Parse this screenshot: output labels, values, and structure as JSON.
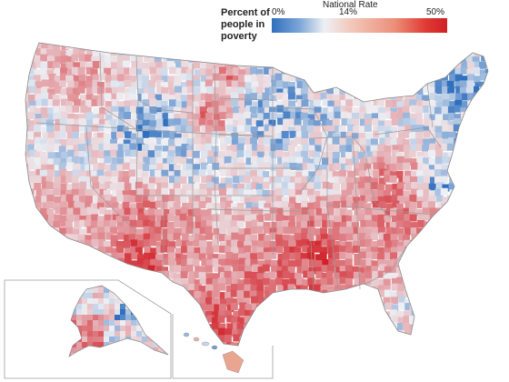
{
  "legend": {
    "title": "Percent of people in poverty",
    "min_label": "0%",
    "mid_caption": "National Rate",
    "mid_label": "14%",
    "max_label": "50%",
    "scale_min": 0,
    "scale_mid": 14,
    "scale_max": 50,
    "colors": [
      "#2f6fbe",
      "#eef0f4",
      "#d11f26"
    ]
  },
  "map": {
    "regions_shown": [
      "Contiguous United States",
      "Alaska inset",
      "Hawaii inset"
    ],
    "high_poverty_areas": [
      "Mississippi Delta",
      "Appalachia",
      "Rio Grande border (Texas)",
      "Navajo Nation (Arizona/New Mexico)",
      "Pine Ridge (South Dakota)",
      "Montana reservations",
      "Alaska southwest"
    ],
    "low_poverty_areas": [
      "Northeast",
      "Upper Midwest / Minnesota",
      "Wyoming",
      "Colorado",
      "Washington DC metro"
    ]
  }
}
